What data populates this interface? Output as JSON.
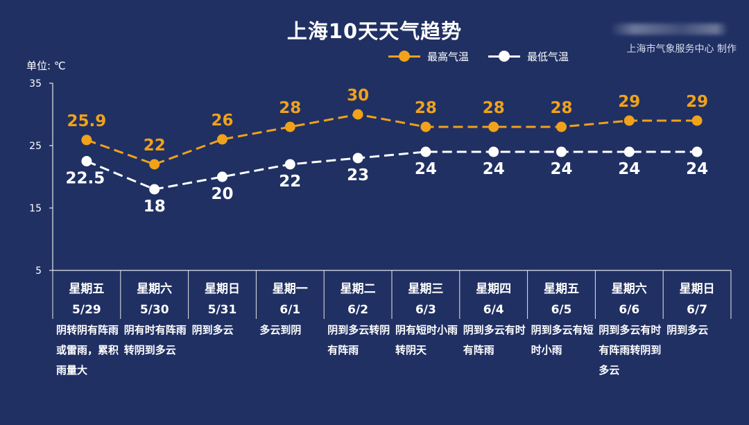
{
  "title": "上海10天天气趋势",
  "credit": "上海市气象服务中心 制作",
  "unit_label": "单位: ℃",
  "colors": {
    "high": "#f0a21a",
    "low": "#ffffff",
    "background": "#203063",
    "axis": "#e8e8e8"
  },
  "legend": [
    {
      "label": "最高气温",
      "series": "high"
    },
    {
      "label": "最低气温",
      "series": "low"
    }
  ],
  "days": [
    {
      "weekday": "星期五",
      "date": "5/29",
      "weather": "阴转阴有阵雨或雷雨，累积雨量大"
    },
    {
      "weekday": "星期六",
      "date": "5/30",
      "weather": "阴有时有阵雨转阴到多云"
    },
    {
      "weekday": "星期日",
      "date": "5/31",
      "weather": "阴到多云"
    },
    {
      "weekday": "星期一",
      "date": "6/1",
      "weather": "多云到阴"
    },
    {
      "weekday": "星期二",
      "date": "6/2",
      "weather": "阴到多云转阴有阵雨"
    },
    {
      "weekday": "星期三",
      "date": "6/3",
      "weather": "阴有短时小雨转阴天"
    },
    {
      "weekday": "星期四",
      "date": "6/4",
      "weather": "阴到多云有时有阵雨"
    },
    {
      "weekday": "星期五",
      "date": "6/5",
      "weather": "阴到多云有短时小雨"
    },
    {
      "weekday": "星期六",
      "date": "6/6",
      "weather": "阴到多云有时有阵雨转阴到多云"
    },
    {
      "weekday": "星期日",
      "date": "6/7",
      "weather": "阴到多云"
    }
  ],
  "chart_data": {
    "type": "line",
    "categories": [
      "5/29",
      "5/30",
      "5/31",
      "6/1",
      "6/2",
      "6/3",
      "6/4",
      "6/5",
      "6/6",
      "6/7"
    ],
    "series": [
      {
        "name": "最高气温",
        "key": "high",
        "values": [
          25.9,
          22,
          26,
          28,
          30,
          28,
          28,
          28,
          29,
          29
        ]
      },
      {
        "name": "最低气温",
        "key": "low",
        "values": [
          22.5,
          18,
          20,
          22,
          23,
          24,
          24,
          24,
          24,
          24
        ]
      }
    ],
    "ylabel": "单位: ℃",
    "ylim": [
      5,
      35
    ],
    "yticks": [
      5,
      15,
      25,
      35
    ],
    "grid": false,
    "legend_position": "top-right"
  }
}
